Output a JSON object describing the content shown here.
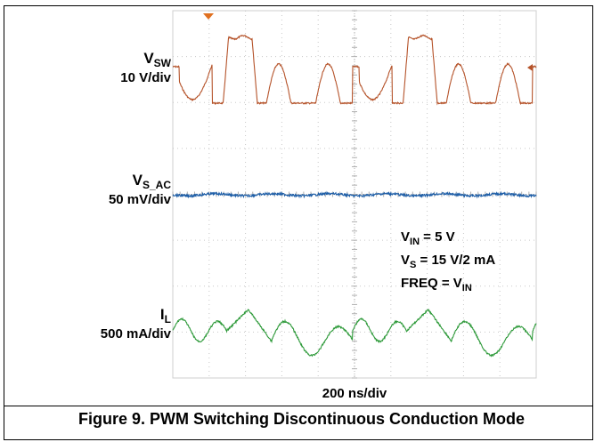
{
  "chart_data": {
    "type": "line",
    "title": "",
    "xlabel": "200 ns/div",
    "channels": [
      {
        "id": "vsw",
        "label_main": "V",
        "label_sub": "SW",
        "scale": "10 V/div",
        "color": "#b5532a",
        "description_points": [
          [
            0,
            0.35
          ],
          [
            0.1,
            0.5
          ],
          [
            0.3,
            0.9
          ],
          [
            0.5,
            0.5
          ],
          [
            0.7,
            0.9
          ],
          [
            0.9,
            0.55
          ],
          [
            1.0,
            0.6
          ]
        ]
      },
      {
        "id": "vsac",
        "label_main": "V",
        "label_sub": "S_AC",
        "scale": "50 mV/div",
        "color": "#1f5fa8"
      },
      {
        "id": "il",
        "label_main": "I",
        "label_sub": "L",
        "scale": "500 mA/div",
        "color": "#2e9a3a"
      }
    ],
    "annotations": {
      "vin": {
        "main": "V",
        "sub": "IN",
        "rest": " = 5 V"
      },
      "vs": {
        "main": "V",
        "sub": "S",
        "rest": " = 15 V/2 mA"
      },
      "freq": {
        "main": "FREQ = V",
        "sub": "IN",
        "rest": ""
      }
    },
    "grid": true,
    "divisions": {
      "x": 10,
      "y": 8
    }
  },
  "caption": "Figure 9. PWM Switching Discontinuous Conduction Mode"
}
